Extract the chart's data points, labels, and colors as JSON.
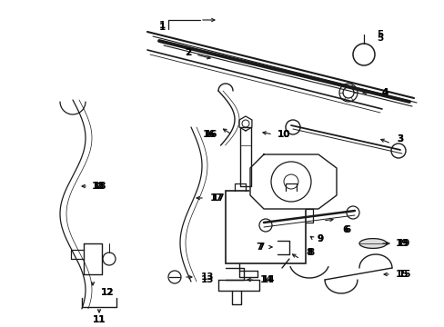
{
  "bg_color": "#ffffff",
  "line_color": "#1a1a1a",
  "label_color": "#000000",
  "figsize": [
    4.89,
    3.6
  ],
  "dpi": 100
}
